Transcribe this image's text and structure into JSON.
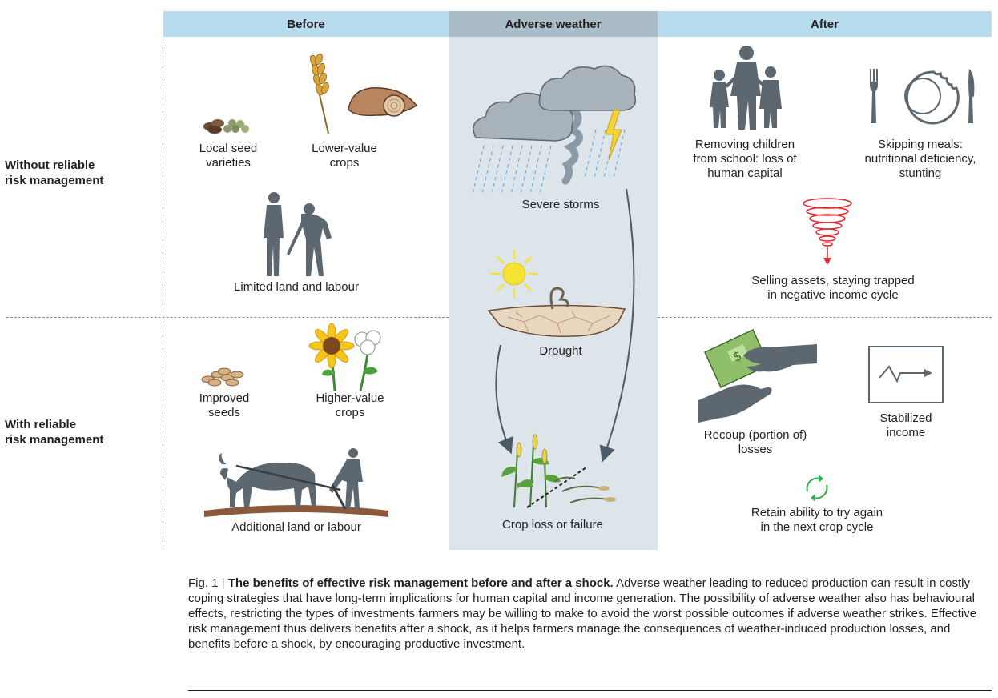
{
  "header": {
    "before": "Before",
    "adverse": "Adverse weather",
    "after": "After"
  },
  "rows": {
    "without": "Without reliable\nrisk management",
    "with": "With reliable\nrisk management"
  },
  "labels": {
    "local_seed": "Local seed\nvarieties",
    "lower_value": "Lower-value\ncrops",
    "limited_land": "Limited land and labour",
    "improved_seeds": "Improved\nseeds",
    "higher_value": "Higher-value\ncrops",
    "additional_land": "Additional land or labour",
    "severe_storms": "Severe storms",
    "drought": "Drought",
    "crop_loss": "Crop loss or failure",
    "removing_children": "Removing children\nfrom school: loss of\nhuman capital",
    "skipping_meals": "Skipping meals:\nnutritional deficiency,\nstunting",
    "selling_assets": "Selling assets, staying trapped\nin negative income cycle",
    "recoup": "Recoup (portion of)\nlosses",
    "stabilized": "Stabilized\nincome",
    "retain": "Retain ability to try again\nin the next crop cycle"
  },
  "caption": {
    "fig": "Fig. 1 | ",
    "title": "The benefits of effective risk management before and after a shock.",
    "body": " Adverse weather leading to reduced production can result in costly coping strategies that have long-term implications for human capital and income generation. The possibility of adverse weather also has behavioural effects, restricting the types of investments farmers may be willing to make to avoid the worst possible outcomes if adverse weather strikes. Effective risk management thus delivers benefits after a shock, as it helps farmers manage the consequences of weather-induced production losses, and benefits before a shock, by encouraging productive investment."
  },
  "colors": {
    "header_side": "#b7dcee",
    "header_mid": "#a9bcc8",
    "middle_column": "#dde4ea",
    "silhouette": "#5c6770",
    "spiral_red": "#e3262b",
    "cycle_green": "#2fae4a",
    "sun_yellow": "#f4e431",
    "soil_brown": "#8b5a3c"
  },
  "icons": [
    "seed-pile-icon",
    "wheat-sweet-potato-icon",
    "farmers-icon",
    "improved-seeds-icon",
    "sunflower-cotton-icon",
    "ox-plough-icon",
    "storm-cloud-tornado-icon",
    "sun-drought-icon",
    "crop-failure-icon",
    "family-icon",
    "plate-cutlery-icon",
    "downward-spiral-icon",
    "money-hands-icon",
    "income-chart-icon",
    "cycle-arrows-icon"
  ]
}
